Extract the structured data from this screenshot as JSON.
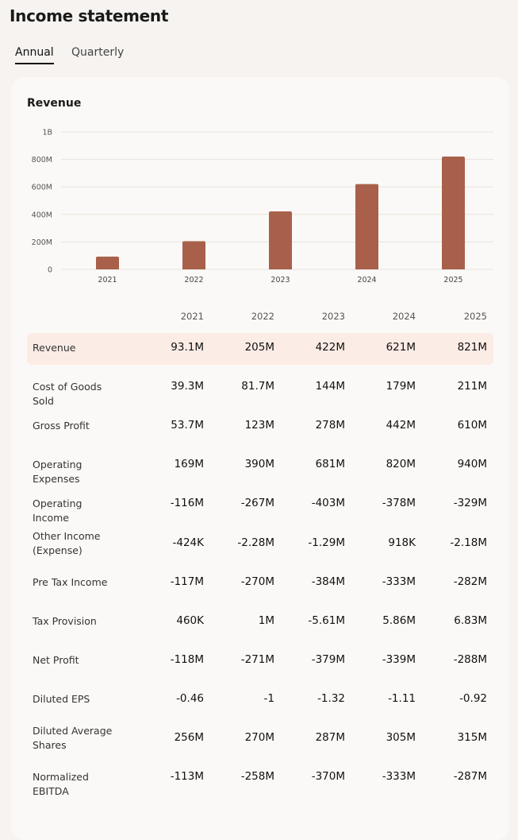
{
  "title": "Income statement",
  "tabs": [
    {
      "label": "Annual",
      "active": true
    },
    {
      "label": "Quarterly",
      "active": false
    }
  ],
  "chart_data": {
    "type": "bar",
    "title": "Revenue",
    "categories": [
      "2021",
      "2022",
      "2023",
      "2024",
      "2025"
    ],
    "values": [
      93.1,
      205,
      422,
      621,
      821
    ],
    "unit": "M",
    "yticks": [
      "0",
      "200M",
      "400M",
      "600M",
      "800M",
      "1B"
    ],
    "ylim": [
      0,
      1000
    ],
    "grid": true,
    "bar_color": "#a9604a"
  },
  "table": {
    "columns": [
      "2021",
      "2022",
      "2023",
      "2024",
      "2025"
    ],
    "rows": [
      {
        "label": "Revenue",
        "values": [
          "93.1M",
          "205M",
          "422M",
          "621M",
          "821M"
        ],
        "highlight": true
      },
      {
        "label": "Cost of Goods Sold",
        "values": [
          "39.3M",
          "81.7M",
          "144M",
          "179M",
          "211M"
        ]
      },
      {
        "label": "Gross Profit",
        "values": [
          "53.7M",
          "123M",
          "278M",
          "442M",
          "610M"
        ]
      },
      {
        "label": "Operating Expenses",
        "values": [
          "169M",
          "390M",
          "681M",
          "820M",
          "940M"
        ]
      },
      {
        "label": "Operating Income",
        "values": [
          "-116M",
          "-267M",
          "-403M",
          "-378M",
          "-329M"
        ]
      },
      {
        "label": "Other Income (Expense)",
        "values": [
          "-424K",
          "-2.28M",
          "-1.29M",
          "918K",
          "-2.18M"
        ]
      },
      {
        "label": "Pre Tax Income",
        "values": [
          "-117M",
          "-270M",
          "-384M",
          "-333M",
          "-282M"
        ]
      },
      {
        "label": "Tax Provision",
        "values": [
          "460K",
          "1M",
          "-5.61M",
          "5.86M",
          "6.83M"
        ]
      },
      {
        "label": "Net Profit",
        "values": [
          "-118M",
          "-271M",
          "-379M",
          "-339M",
          "-288M"
        ]
      },
      {
        "label": "Diluted EPS",
        "values": [
          "-0.46",
          "-1",
          "-1.32",
          "-1.11",
          "-0.92"
        ]
      },
      {
        "label": "Diluted Average Shares",
        "values": [
          "256M",
          "270M",
          "287M",
          "305M",
          "315M"
        ]
      },
      {
        "label": "Normalized EBITDA",
        "values": [
          "-113M",
          "-258M",
          "-370M",
          "-333M",
          "-287M"
        ]
      }
    ]
  }
}
